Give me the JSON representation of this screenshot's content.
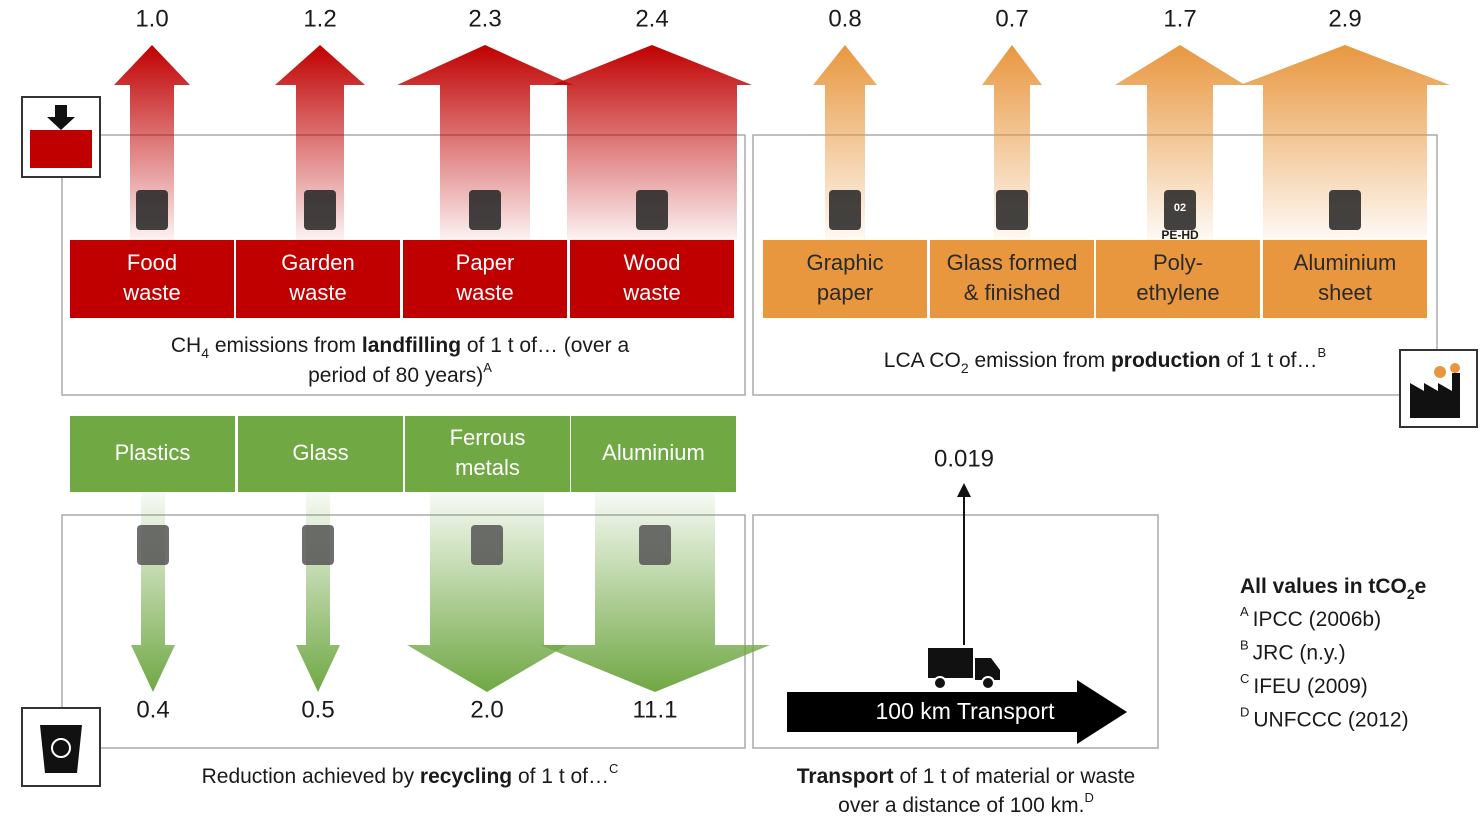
{
  "landfill": {
    "items": [
      {
        "label": [
          "Food",
          "waste"
        ],
        "value": "1.0"
      },
      {
        "label": [
          "Garden",
          "waste"
        ],
        "value": "1.2"
      },
      {
        "label": [
          "Paper",
          "waste"
        ],
        "value": "2.3"
      },
      {
        "label": [
          "Wood",
          "waste"
        ],
        "value": "2.4"
      }
    ],
    "caption": [
      [
        "CH",
        "4",
        " emissions from ",
        "landfilling",
        " of 1 t of… (over a"
      ],
      [
        "period of 80 years)",
        "A"
      ]
    ]
  },
  "production": {
    "items": [
      {
        "label": [
          "Graphic",
          "paper"
        ],
        "value": "0.8"
      },
      {
        "label": [
          "Glass formed",
          "& finished"
        ],
        "value": "0.7"
      },
      {
        "label": [
          "Poly-",
          "ethylene"
        ],
        "value": "1.7",
        "icon_text": [
          "02",
          "PE-HD"
        ]
      },
      {
        "label": [
          "Aluminium",
          "sheet"
        ],
        "value": "2.9"
      }
    ],
    "caption": [
      "LCA CO",
      "2",
      " emission from ",
      "production",
      " of 1 t of…",
      "B"
    ]
  },
  "recycling": {
    "items": [
      {
        "label": [
          "Plastics"
        ],
        "value": "0.4"
      },
      {
        "label": [
          "Glass"
        ],
        "value": "0.5"
      },
      {
        "label": [
          "Ferrous",
          "metals"
        ],
        "value": "2.0"
      },
      {
        "label": [
          "Aluminium"
        ],
        "value": "11.1"
      }
    ],
    "caption": [
      "Reduction achieved by ",
      "recycling",
      " of 1 t of…",
      "C"
    ]
  },
  "transport": {
    "value": "0.019",
    "arrow_label": "100 km Transport",
    "caption": [
      [
        "Transport",
        " of 1 t of material or waste"
      ],
      [
        "over a distance of 100 km.",
        "D"
      ]
    ]
  },
  "legend": {
    "title": [
      "All values in tCO",
      "2",
      "e"
    ],
    "sources": [
      {
        "mark": "A",
        "text": "IPCC (2006b)"
      },
      {
        "mark": "B",
        "text": "JRC (n.y.)"
      },
      {
        "mark": "C",
        "text": "IFEU (2009)"
      },
      {
        "mark": "D",
        "text": "UNFCCC (2012)"
      }
    ]
  }
}
